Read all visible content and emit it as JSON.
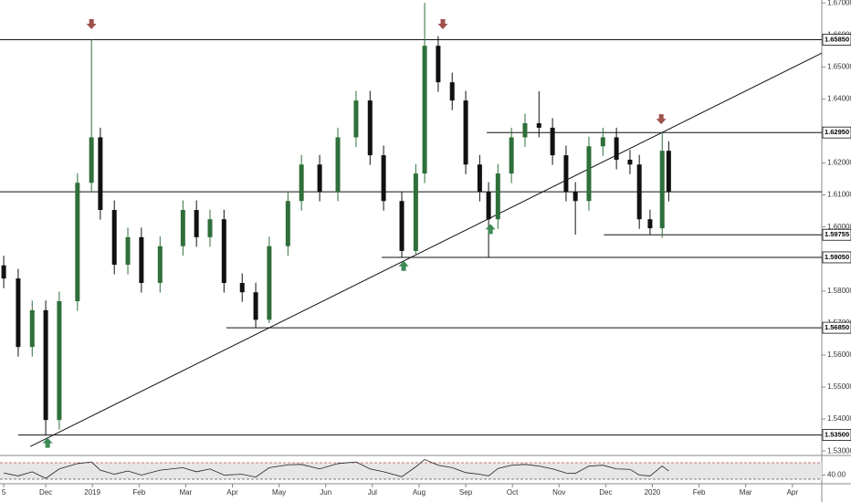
{
  "chart_data": [
    {
      "type": "candlestick",
      "x": [
        0.1,
        0.41,
        0.71,
        1.0,
        1.29,
        1.68,
        1.98,
        2.17,
        2.47,
        2.76,
        3.05,
        3.45,
        3.94,
        4.23,
        4.52,
        4.82,
        5.21,
        5.5,
        5.79,
        6.19,
        6.48,
        6.87,
        7.26,
        7.65,
        7.95,
        8.24,
        8.63,
        8.93,
        9.12,
        9.41,
        9.71,
        10.0,
        10.3,
        10.49,
        10.69,
        10.98,
        11.27,
        11.57,
        11.86,
        12.15,
        12.35,
        12.64,
        12.94,
        13.23,
        13.52,
        13.72,
        13.95,
        14.21,
        14.35
      ],
      "open": [
        1.588,
        1.5839,
        1.5625,
        1.574,
        1.5397,
        1.5768,
        1.6138,
        1.628,
        1.6053,
        1.5882,
        1.5968,
        1.5825,
        1.594,
        1.6053,
        1.5968,
        1.6024,
        1.5825,
        1.5796,
        1.571,
        1.594,
        1.6081,
        1.6195,
        1.611,
        1.628,
        1.6395,
        1.6224,
        1.6081,
        1.5925,
        1.6167,
        1.6566,
        1.6452,
        1.6395,
        1.6195,
        1.611,
        1.6024,
        1.6167,
        1.628,
        1.6324,
        1.631,
        1.6224,
        1.611,
        1.6081,
        1.6252,
        1.628,
        1.621,
        1.6195,
        1.6024,
        1.5996,
        1.6238
      ],
      "high": [
        1.591,
        1.5869,
        1.577,
        1.577,
        1.5798,
        1.6168,
        1.6585,
        1.631,
        1.6083,
        1.5998,
        1.5998,
        1.597,
        1.6083,
        1.6083,
        1.6054,
        1.6054,
        1.5855,
        1.5826,
        1.597,
        1.6111,
        1.6225,
        1.6225,
        1.631,
        1.6425,
        1.6425,
        1.6254,
        1.6111,
        1.6197,
        1.67,
        1.6596,
        1.6482,
        1.6425,
        1.6225,
        1.614,
        1.6197,
        1.631,
        1.6354,
        1.6424,
        1.634,
        1.6254,
        1.614,
        1.6282,
        1.631,
        1.631,
        1.624,
        1.6225,
        1.6054,
        1.6295,
        1.6268
      ],
      "low": [
        1.5809,
        1.5595,
        1.5595,
        1.535,
        1.5367,
        1.5738,
        1.6108,
        1.6023,
        1.5852,
        1.5852,
        1.5795,
        1.5795,
        1.591,
        1.5938,
        1.5938,
        1.5795,
        1.5766,
        1.5685,
        1.57,
        1.591,
        1.6051,
        1.608,
        1.608,
        1.625,
        1.6194,
        1.6051,
        1.5905,
        1.5915,
        1.6137,
        1.6422,
        1.6365,
        1.6165,
        1.608,
        1.5905,
        1.5994,
        1.6137,
        1.625,
        1.628,
        1.6194,
        1.608,
        1.5976,
        1.6051,
        1.6222,
        1.618,
        1.6165,
        1.5994,
        1.5976,
        1.5966,
        1.608
      ],
      "close": [
        1.5839,
        1.5625,
        1.574,
        1.5397,
        1.5768,
        1.6138,
        1.628,
        1.6053,
        1.5882,
        1.5968,
        1.5825,
        1.594,
        1.6053,
        1.5968,
        1.6024,
        1.5825,
        1.5796,
        1.571,
        1.594,
        1.6081,
        1.6195,
        1.611,
        1.628,
        1.6395,
        1.6224,
        1.6081,
        1.5925,
        1.6167,
        1.6566,
        1.6452,
        1.6395,
        1.6195,
        1.611,
        1.6024,
        1.6167,
        1.628,
        1.6324,
        1.631,
        1.6224,
        1.611,
        1.6081,
        1.6252,
        1.628,
        1.621,
        1.6195,
        1.6024,
        1.5996,
        1.6238,
        1.611
      ],
      "up_color": "#2f6f3a",
      "down_color": "#111111",
      "xlim": [
        0.02,
        17.63
      ],
      "xticks": [
        {
          "value": 0.1,
          "label": "5"
        },
        {
          "value": 1,
          "label": "Dec"
        },
        {
          "value": 2,
          "label": "2019"
        },
        {
          "value": 3,
          "label": "Feb"
        },
        {
          "value": 4,
          "label": "Mar"
        },
        {
          "value": 5,
          "label": "Apr"
        },
        {
          "value": 6,
          "label": "May"
        },
        {
          "value": 7,
          "label": "Jun"
        },
        {
          "value": 8,
          "label": "Jul"
        },
        {
          "value": 9,
          "label": "Aug"
        },
        {
          "value": 10,
          "label": "Sep"
        },
        {
          "value": 11,
          "label": "Oct"
        },
        {
          "value": 12,
          "label": "Nov"
        },
        {
          "value": 13,
          "label": "Dec"
        },
        {
          "value": 14,
          "label": "2020"
        },
        {
          "value": 15,
          "label": "Feb"
        },
        {
          "value": 16,
          "label": "Mar"
        },
        {
          "value": 17,
          "label": "Apr"
        }
      ],
      "ylim": [
        1.5289,
        1.6709
      ],
      "yticks": [
        {
          "value": 1.53,
          "label": "1.53000"
        },
        {
          "value": 1.54,
          "label": "1.54000"
        },
        {
          "value": 1.55,
          "label": "1.55000"
        },
        {
          "value": 1.56,
          "label": "1.56000"
        },
        {
          "value": 1.57,
          "label": "1.57000"
        },
        {
          "value": 1.58,
          "label": "1.58000"
        },
        {
          "value": 1.59,
          "label": "1.59000"
        },
        {
          "value": 1.6,
          "label": "1.60000"
        },
        {
          "value": 1.61,
          "label": "1.61000"
        },
        {
          "value": 1.62,
          "label": "1.62000"
        },
        {
          "value": 1.63,
          "label": "1.63000"
        },
        {
          "value": 1.64,
          "label": "1.64000"
        },
        {
          "value": 1.65,
          "label": "1.65000"
        },
        {
          "value": 1.66,
          "label": "1.66000"
        },
        {
          "value": 1.67,
          "label": "1.67000"
        }
      ],
      "grid": false,
      "levels": [
        {
          "value": 1.6585,
          "label": "1.65850",
          "from": 0.02
        },
        {
          "value": 1.6295,
          "label": "1.62950",
          "from": 10.45
        },
        {
          "value": 1.611,
          "from": 0.02
        },
        {
          "value": 1.59755,
          "label": "1.59755",
          "from": 12.96
        },
        {
          "value": 1.5905,
          "label": "1.59050",
          "from": 8.2
        },
        {
          "value": 1.5685,
          "label": "1.56850",
          "from": 4.87
        },
        {
          "value": 1.535,
          "label": "1.53500",
          "from": 0.41
        }
      ],
      "trendline": {
        "x": [
          0.67,
          17.63
        ],
        "y": [
          1.5314,
          1.6543
        ]
      },
      "signals": [
        {
          "x": 1.98,
          "y": 1.6632,
          "dir": "down"
        },
        {
          "x": 9.51,
          "y": 1.6632,
          "dir": "down"
        },
        {
          "x": 14.19,
          "y": 1.6335,
          "dir": "down"
        },
        {
          "x": 1.04,
          "y": 1.5327,
          "dir": "up"
        },
        {
          "x": 8.67,
          "y": 1.588,
          "dir": "up"
        },
        {
          "x": 10.53,
          "y": 1.5995,
          "dir": "up"
        }
      ]
    },
    {
      "type": "line",
      "x": [
        0.1,
        0.41,
        0.71,
        1.0,
        1.29,
        1.68,
        1.98,
        2.17,
        2.47,
        2.76,
        3.05,
        3.45,
        3.94,
        4.23,
        4.52,
        4.82,
        5.21,
        5.5,
        5.79,
        6.19,
        6.48,
        6.87,
        7.26,
        7.65,
        7.95,
        8.24,
        8.63,
        8.93,
        9.12,
        9.41,
        9.71,
        10.0,
        10.3,
        10.49,
        10.69,
        10.98,
        11.27,
        11.57,
        11.86,
        12.15,
        12.35,
        12.64,
        12.94,
        13.23,
        13.52,
        13.72,
        13.95,
        14.21,
        14.35
      ],
      "values": [
        45,
        38,
        48,
        32,
        55,
        68,
        72,
        52,
        42,
        50,
        40,
        52,
        58,
        48,
        55,
        40,
        42,
        35,
        58,
        65,
        66,
        55,
        68,
        72,
        55,
        48,
        36,
        60,
        78,
        64,
        58,
        46,
        42,
        38,
        56,
        64,
        66,
        62,
        55,
        45,
        44,
        62,
        64,
        55,
        54,
        40,
        38,
        62,
        50
      ],
      "color": "#222222",
      "xlim": [
        0.02,
        17.63
      ],
      "ylim": [
        18.9,
        85.6
      ],
      "yticks": [
        {
          "value": 40,
          "label": "40.00"
        }
      ],
      "ref_lines": [
        70,
        30
      ]
    }
  ]
}
